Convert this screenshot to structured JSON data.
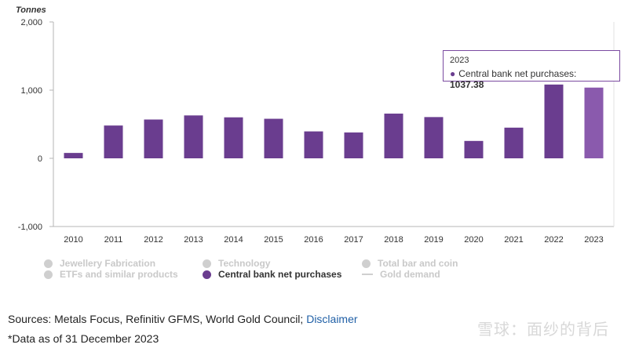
{
  "chart_data": {
    "type": "bar",
    "ylabel": "Tonnes",
    "ylim": [
      -1000,
      2000
    ],
    "yticks": [
      2000,
      1000,
      0,
      -1000
    ],
    "ytick_labels": [
      "2,000",
      "1,000",
      "0",
      "-1,000"
    ],
    "categories": [
      "2010",
      "2011",
      "2012",
      "2013",
      "2014",
      "2015",
      "2016",
      "2017",
      "2018",
      "2019",
      "2020",
      "2021",
      "2022",
      "2023"
    ],
    "series": [
      {
        "name": "Central bank net purchases",
        "color": "#6a3d8f",
        "highlight_color": "#8a5aad",
        "values": [
          79,
          481,
          569,
          629,
          601,
          580,
          395,
          379,
          656,
          605,
          255,
          450,
          1082,
          1037.38
        ]
      }
    ],
    "legend": [
      {
        "label": "Jewellery Fabrication",
        "marker": "dot",
        "active": false
      },
      {
        "label": "Technology",
        "marker": "dot",
        "active": false
      },
      {
        "label": "Total bar and coin",
        "marker": "dot",
        "active": false
      },
      {
        "label": "ETFs and similar products",
        "marker": "dot",
        "active": false
      },
      {
        "label": "Central bank net purchases",
        "marker": "dot",
        "active": true
      },
      {
        "label": "Gold demand",
        "marker": "line",
        "active": false
      }
    ],
    "legend_position": "bottom",
    "grid": false
  },
  "tooltip": {
    "year": "2023",
    "series": "Central bank net purchases:",
    "value": "1037.38"
  },
  "footer": {
    "sources_prefix": "Sources: Metals Focus, Refinitiv GFMS, World Gold Council; ",
    "disclaimer_link": "Disclaimer",
    "note": "*Data as of 31 December 2023"
  },
  "watermark": "雪球：面纱的背后"
}
